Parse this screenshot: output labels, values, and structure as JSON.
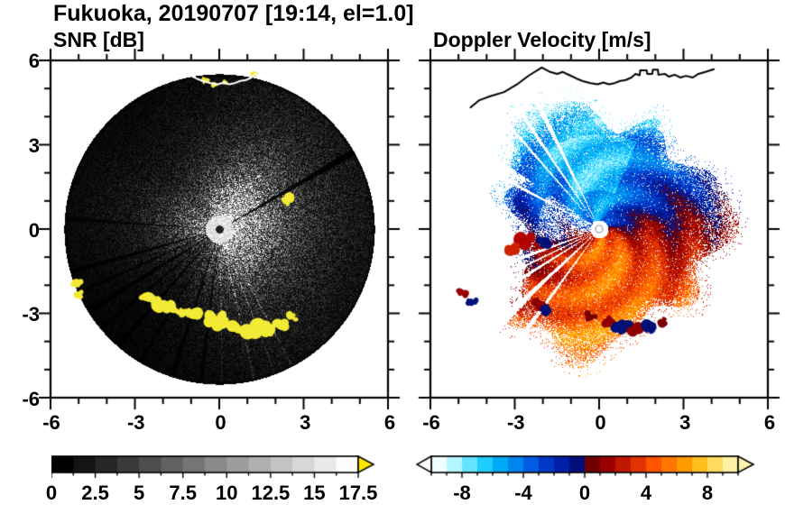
{
  "header": {
    "title": "Fukuoka, 20190707 [19:14, el=1.0]",
    "site": "Fukuoka",
    "date": "20190707",
    "time": "19:14",
    "elevation_deg": 1.0
  },
  "panels": {
    "snr": {
      "subtitle": "SNR [dB]",
      "xtick_labels": [
        "-6",
        "-3",
        "0",
        "3",
        "6"
      ],
      "ytick_labels": [
        "6",
        "3",
        "0",
        "-3",
        "-6"
      ],
      "colorbar_labels": [
        "0",
        "2.5",
        "5",
        "7.5",
        "10",
        "12.5",
        "15",
        "17.5"
      ]
    },
    "doppler": {
      "subtitle": "Doppler Velocity [m/s]",
      "xtick_labels": [
        "-6",
        "-3",
        "0",
        "3",
        "6"
      ],
      "colorbar_labels": [
        "-8",
        "-4",
        "0",
        "4",
        "8"
      ]
    }
  },
  "chart_data": [
    {
      "type": "heatmap",
      "name": "snr",
      "title": "SNR [dB]",
      "xlim": [
        -6,
        6
      ],
      "ylim": [
        -6,
        6
      ],
      "xticks": [
        -6,
        -3,
        0,
        3,
        6
      ],
      "yticks": [
        -6,
        -3,
        0,
        3,
        6
      ],
      "grid": false,
      "scan_radius": 5.55,
      "colorbar": {
        "min": 0,
        "max": 17.5,
        "step": 1.25,
        "labels": [
          "0",
          "2.5",
          "5",
          "7.5",
          "10",
          "12.5",
          "15",
          "17.5"
        ],
        "colors": [
          "#000000",
          "#141414",
          "#272727",
          "#3b3b3b",
          "#4e4e4e",
          "#626262",
          "#757575",
          "#898989",
          "#9c9c9c",
          "#b0b0b0",
          "#c3c3c3",
          "#d7d7d7",
          "#eaeaea",
          "#fdfdfd"
        ],
        "over_arrow": "#ffe800",
        "major_every": 2,
        "major_offset": 0
      },
      "dark_wedges": [
        {
          "a": 30,
          "w": 1.3,
          "d": 0.1
        },
        {
          "a": 176,
          "w": 0.8,
          "d": 0.35
        },
        {
          "a": 196,
          "w": 1.1,
          "d": 0.22
        },
        {
          "a": 204,
          "w": 0.8,
          "d": 0.3
        },
        {
          "a": 212,
          "w": 1.2,
          "d": 0.18
        },
        {
          "a": 220,
          "w": 0.9,
          "d": 0.3
        },
        {
          "a": 229,
          "w": 1.1,
          "d": 0.22
        },
        {
          "a": 239,
          "w": 0.8,
          "d": 0.32
        },
        {
          "a": 252,
          "w": 1.0,
          "d": 0.28
        },
        {
          "a": 263,
          "w": 0.9,
          "d": 0.32
        }
      ],
      "bright_spokes": [
        {
          "a": 271,
          "w": 0.4,
          "g": 1.9
        },
        {
          "a": 283,
          "w": 0.5,
          "g": 2.3
        },
        {
          "a": 291,
          "w": 0.4,
          "g": 2.1
        },
        {
          "a": 298,
          "w": 0.45,
          "g": 2.2
        }
      ],
      "clutter_color": "#f2ea35",
      "clutter_blobs": [
        {
          "x": -5.1,
          "y": -1.9,
          "s": 0.16
        },
        {
          "x": -5.0,
          "y": -2.35,
          "s": 0.13
        },
        {
          "x": -2.55,
          "y": -2.5,
          "s": 0.2
        },
        {
          "x": -2.15,
          "y": -2.7,
          "s": 0.24
        },
        {
          "x": -1.7,
          "y": -2.85,
          "s": 0.2
        },
        {
          "x": -1.25,
          "y": -2.95,
          "s": 0.18
        },
        {
          "x": -0.85,
          "y": -3.05,
          "s": 0.2
        },
        {
          "x": -0.4,
          "y": -3.2,
          "s": 0.2
        },
        {
          "x": 0.1,
          "y": -3.3,
          "s": 0.24
        },
        {
          "x": 0.6,
          "y": -3.45,
          "s": 0.24
        },
        {
          "x": 1.15,
          "y": -3.55,
          "s": 0.27
        },
        {
          "x": 1.7,
          "y": -3.55,
          "s": 0.24
        },
        {
          "x": 2.2,
          "y": -3.4,
          "s": 0.2
        },
        {
          "x": 2.6,
          "y": -3.15,
          "s": 0.16
        },
        {
          "x": 2.35,
          "y": 1.05,
          "s": 0.18
        },
        {
          "x": -0.55,
          "y": 5.3,
          "s": 0.11
        },
        {
          "x": -0.15,
          "y": 5.2,
          "s": 0.09
        },
        {
          "x": 0.2,
          "y": 5.25,
          "s": 0.07
        },
        {
          "x": 1.25,
          "y": 5.55,
          "s": 0.09
        }
      ],
      "coastline_km": [
        [
          -4.6,
          4.35
        ],
        [
          -4.3,
          4.6
        ],
        [
          -3.9,
          4.75
        ],
        [
          -3.4,
          4.9
        ],
        [
          -2.9,
          5.2
        ],
        [
          -2.5,
          5.5
        ],
        [
          -2.05,
          5.78
        ],
        [
          -1.75,
          5.62
        ],
        [
          -1.5,
          5.55
        ],
        [
          -1.3,
          5.62
        ],
        [
          -1.05,
          5.5
        ],
        [
          -0.8,
          5.38
        ],
        [
          -0.55,
          5.28
        ],
        [
          -0.3,
          5.22
        ],
        [
          -0.05,
          5.18
        ],
        [
          0.15,
          5.24
        ],
        [
          0.35,
          5.18
        ],
        [
          0.55,
          5.22
        ],
        [
          0.75,
          5.3
        ],
        [
          0.95,
          5.33
        ],
        [
          1.15,
          5.42
        ],
        [
          1.3,
          5.55
        ],
        [
          1.45,
          5.5
        ],
        [
          1.47,
          5.68
        ],
        [
          1.7,
          5.68
        ],
        [
          1.72,
          5.55
        ],
        [
          1.9,
          5.55
        ],
        [
          1.92,
          5.7
        ],
        [
          2.1,
          5.7
        ],
        [
          2.12,
          5.52
        ],
        [
          2.35,
          5.55
        ],
        [
          2.5,
          5.45
        ],
        [
          2.7,
          5.52
        ],
        [
          2.9,
          5.42
        ],
        [
          3.1,
          5.48
        ],
        [
          3.35,
          5.42
        ],
        [
          3.55,
          5.55
        ],
        [
          3.8,
          5.62
        ],
        [
          4.1,
          5.72
        ]
      ],
      "description": "Radar SNR PPI scan: speckled echo brightest near the radar and in a broad fan to the east, dark shadow wedges toward ENE and WSW-S, bright thin spokes toward SSE, yellow high-SNR ground-clutter arc along the southern coastline, a yellow spot near (2.3,1.0) and small yellow patches at the northern coast."
    },
    {
      "type": "heatmap",
      "name": "doppler",
      "title": "Doppler Velocity [m/s]",
      "xlim": [
        -6,
        6
      ],
      "ylim": [
        -6,
        6
      ],
      "xticks": [
        -6,
        -3,
        0,
        3,
        6
      ],
      "yticks": [
        -6,
        -3,
        0,
        3,
        6
      ],
      "grid": false,
      "colorbar": {
        "min": -10,
        "max": 10,
        "step": 1,
        "labels": [
          "-8",
          "-4",
          "0",
          "4",
          "8"
        ],
        "colors": [
          "#f0ffff",
          "#b4f5ff",
          "#66e4ff",
          "#20cdfc",
          "#00aaf5",
          "#0084ee",
          "#005ce0",
          "#0038c8",
          "#001fa8",
          "#000e78",
          "#700000",
          "#9a0000",
          "#c01800",
          "#e03400",
          "#ff5300",
          "#ff7700",
          "#ff9a00",
          "#ffbe1e",
          "#ffd960",
          "#fff0a8"
        ],
        "left_arrow": "#ffffff",
        "right_arrow": "#fff3b0",
        "major_every": 4,
        "major_offset": 2
      },
      "wind": {
        "toward_azimuth_deg": 100,
        "speed_ms": 5.5
      },
      "gap_wedges": [
        {
          "a": 116,
          "w": 1.0
        },
        {
          "a": 124,
          "w": 0.8
        },
        {
          "a": 131,
          "w": 0.6
        },
        {
          "a": 152,
          "w": 0.9
        },
        {
          "a": 200,
          "w": 1.2
        },
        {
          "a": 206,
          "w": 0.6
        },
        {
          "a": 212,
          "w": 1.0
        },
        {
          "a": 223,
          "w": 1.4
        },
        {
          "a": 234,
          "w": 1.0
        }
      ],
      "clutter_blobs": [
        {
          "x": 0.3,
          "y": -3.3,
          "s": 0.2,
          "c": "#8f0000"
        },
        {
          "x": 0.8,
          "y": -3.5,
          "s": 0.22,
          "c": "#001078"
        },
        {
          "x": 1.35,
          "y": -3.6,
          "s": 0.22,
          "c": "#8f0000"
        },
        {
          "x": 1.85,
          "y": -3.5,
          "s": 0.2,
          "c": "#001078"
        },
        {
          "x": 2.3,
          "y": -3.3,
          "s": 0.16,
          "c": "#7a0000"
        },
        {
          "x": -0.3,
          "y": -3.15,
          "s": 0.18,
          "c": "#7a0000"
        },
        {
          "x": -2.2,
          "y": -2.7,
          "s": 0.2,
          "c": "#8f0000"
        },
        {
          "x": -1.85,
          "y": -2.9,
          "s": 0.16,
          "c": "#001078"
        },
        {
          "x": -4.85,
          "y": -2.3,
          "s": 0.16,
          "c": "#9a0000"
        },
        {
          "x": -4.55,
          "y": -2.6,
          "s": 0.13,
          "c": "#001078"
        },
        {
          "x": -2.6,
          "y": -0.45,
          "s": 0.3,
          "c": "#b30000"
        },
        {
          "x": -2.0,
          "y": -0.5,
          "s": 0.22,
          "c": "#001078"
        },
        {
          "x": -3.1,
          "y": -0.7,
          "s": 0.18,
          "c": "#cc2200"
        }
      ],
      "description": "Doppler velocity PPI: negative velocities (cyan/blue, toward radar) north of the site, positive velocities (orange/red, away) to the south, dark navy / dark red zero-isodop bands east and west of the radar, white missing-data wedges radiating from the center, black coastline drawn across the top."
    }
  ]
}
